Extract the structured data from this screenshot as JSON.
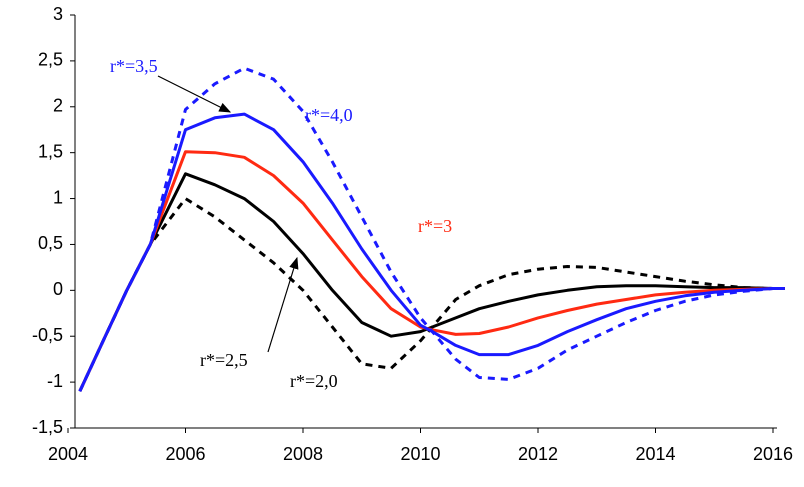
{
  "chart_data": {
    "type": "line",
    "x": [
      2004.2,
      2004.6,
      2005.0,
      2005.4,
      2006.0,
      2006.5,
      2007.0,
      2007.5,
      2008.0,
      2008.5,
      2009.0,
      2009.5,
      2010.0,
      2010.2,
      2010.6,
      2011.0,
      2011.5,
      2012.0,
      2012.5,
      2013.0,
      2013.5,
      2014.0,
      2014.5,
      2015.0,
      2015.5,
      2016.0,
      2016.2
    ],
    "series": [
      {
        "name": "r*=2,0",
        "color": "#000000",
        "dashed": true,
        "values": [
          -1.1,
          -0.55,
          0.0,
          0.5,
          1.0,
          0.8,
          0.55,
          0.3,
          0.0,
          -0.4,
          -0.8,
          -0.85,
          -0.55,
          -0.4,
          -0.1,
          0.05,
          0.17,
          0.23,
          0.26,
          0.25,
          0.2,
          0.15,
          0.1,
          0.06,
          0.03,
          0.02,
          0.02
        ]
      },
      {
        "name": "r*=2,5",
        "color": "#000000",
        "dashed": false,
        "values": [
          -1.1,
          -0.55,
          0.0,
          0.5,
          1.27,
          1.15,
          1.0,
          0.75,
          0.4,
          0.0,
          -0.35,
          -0.5,
          -0.45,
          -0.4,
          -0.3,
          -0.2,
          -0.12,
          -0.05,
          0.0,
          0.04,
          0.05,
          0.05,
          0.04,
          0.03,
          0.03,
          0.02,
          0.02
        ]
      },
      {
        "name": "r*=3",
        "color": "#ff2a12",
        "dashed": false,
        "values": [
          -1.1,
          -0.55,
          0.0,
          0.5,
          1.51,
          1.5,
          1.45,
          1.25,
          0.95,
          0.55,
          0.15,
          -0.2,
          -0.4,
          -0.43,
          -0.48,
          -0.47,
          -0.4,
          -0.3,
          -0.22,
          -0.15,
          -0.1,
          -0.05,
          -0.02,
          0.0,
          0.01,
          0.02,
          0.02
        ]
      },
      {
        "name": "r*=3,5",
        "color": "#1a1aff",
        "dashed": false,
        "values": [
          -1.1,
          -0.55,
          0.0,
          0.5,
          1.75,
          1.88,
          1.92,
          1.75,
          1.4,
          0.95,
          0.45,
          0.0,
          -0.38,
          -0.45,
          -0.6,
          -0.7,
          -0.7,
          -0.6,
          -0.45,
          -0.32,
          -0.2,
          -0.12,
          -0.06,
          -0.02,
          0.0,
          0.02,
          0.02
        ]
      },
      {
        "name": "r*=4,0",
        "color": "#1a1aff",
        "dashed": true,
        "values": [
          -1.1,
          -0.55,
          0.0,
          0.5,
          1.97,
          2.25,
          2.42,
          2.3,
          1.95,
          1.4,
          0.8,
          0.2,
          -0.3,
          -0.45,
          -0.75,
          -0.95,
          -0.97,
          -0.85,
          -0.65,
          -0.5,
          -0.35,
          -0.22,
          -0.12,
          -0.05,
          -0.01,
          0.02,
          0.02
        ]
      }
    ],
    "xlim": [
      2004,
      2016
    ],
    "xticks": [
      2004,
      2006,
      2008,
      2010,
      2012,
      2014,
      2016
    ],
    "ylim": [
      -1.5,
      3
    ],
    "yticks": [
      {
        "value": -1.5,
        "label": "-1,5"
      },
      -1,
      {
        "value": -0.5,
        "label": "-0,5"
      },
      0,
      {
        "value": 0.5,
        "label": "0,5"
      },
      1,
      {
        "value": 1.5,
        "label": "1,5"
      },
      2,
      {
        "value": 2.5,
        "label": "2,5"
      },
      3
    ]
  }
}
